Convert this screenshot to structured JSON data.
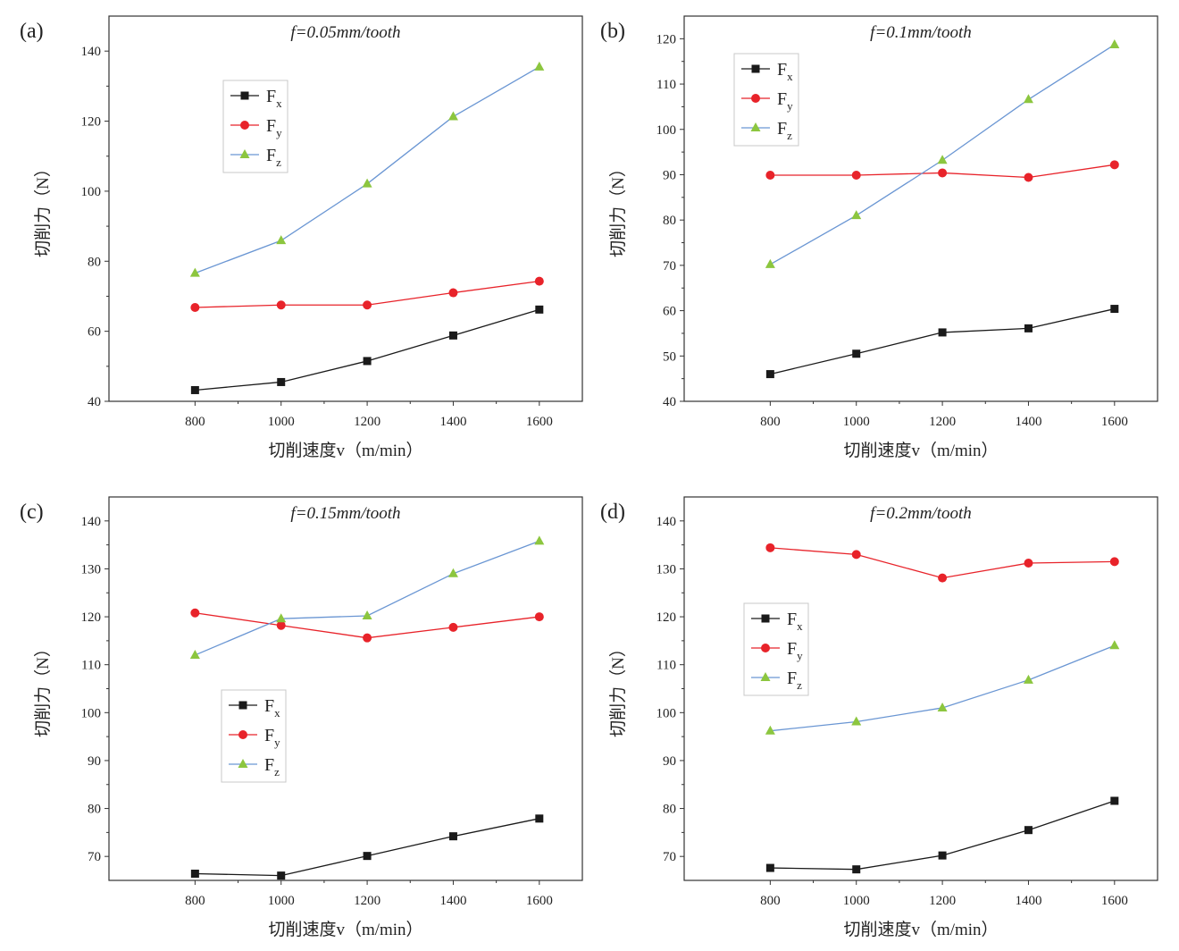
{
  "chart_data": [
    {
      "panel_label": "(a)",
      "title": "f=0.05mm/tooth",
      "type": "line",
      "xlabel": "切削速度v（m/min）",
      "ylabel": "切削力（N）",
      "x": [
        800,
        1000,
        1200,
        1400,
        1600
      ],
      "xlim": [
        600,
        1700
      ],
      "ylim": [
        40,
        150
      ],
      "yticks": [
        40,
        60,
        80,
        100,
        120,
        140
      ],
      "grid": false,
      "legend_position": "upper-left",
      "series": [
        {
          "name": "Fx",
          "base": "F",
          "sub": "x",
          "color": "#1a1a1a",
          "marker": "square",
          "values": [
            43.2,
            45.5,
            51.5,
            58.8,
            66.2
          ]
        },
        {
          "name": "Fy",
          "base": "F",
          "sub": "y",
          "color": "#e8232a",
          "marker": "circle",
          "values": [
            66.8,
            67.5,
            67.5,
            71.0,
            74.3
          ]
        },
        {
          "name": "Fz",
          "base": "F",
          "sub": "z",
          "color": "#6a96d3",
          "marker": "triangle",
          "marker_color": "#8cc63f",
          "values": [
            76.6,
            85.9,
            102.1,
            121.3,
            135.5
          ]
        }
      ]
    },
    {
      "panel_label": "(b)",
      "title": "f=0.1mm/tooth",
      "type": "line",
      "xlabel": "切削速度v（m/min）",
      "ylabel": "切削力（N）",
      "x": [
        800,
        1000,
        1200,
        1400,
        1600
      ],
      "xlim": [
        600,
        1700
      ],
      "ylim": [
        40,
        125
      ],
      "yticks": [
        40,
        50,
        60,
        70,
        80,
        90,
        100,
        110,
        120
      ],
      "grid": false,
      "legend_position": "upper-left",
      "series": [
        {
          "name": "Fx",
          "base": "F",
          "sub": "x",
          "color": "#1a1a1a",
          "marker": "square",
          "values": [
            46.0,
            50.5,
            55.2,
            56.1,
            60.4
          ]
        },
        {
          "name": "Fy",
          "base": "F",
          "sub": "y",
          "color": "#e8232a",
          "marker": "circle",
          "values": [
            89.9,
            89.9,
            90.4,
            89.4,
            92.2
          ]
        },
        {
          "name": "Fz",
          "base": "F",
          "sub": "z",
          "color": "#6a96d3",
          "marker": "triangle",
          "marker_color": "#8cc63f",
          "values": [
            70.2,
            81.0,
            93.2,
            106.6,
            118.7
          ]
        }
      ]
    },
    {
      "panel_label": "(c)",
      "title": "f=0.15mm/tooth",
      "type": "line",
      "xlabel": "切削速度v（m/min）",
      "ylabel": "切削力（N）",
      "x": [
        800,
        1000,
        1200,
        1400,
        1600
      ],
      "xlim": [
        600,
        1700
      ],
      "ylim": [
        65,
        145
      ],
      "yticks": [
        70,
        80,
        90,
        100,
        110,
        120,
        130,
        140
      ],
      "grid": false,
      "legend_position": "center-left",
      "series": [
        {
          "name": "Fx",
          "base": "F",
          "sub": "x",
          "color": "#1a1a1a",
          "marker": "square",
          "values": [
            66.4,
            66.0,
            70.1,
            74.2,
            77.9
          ]
        },
        {
          "name": "Fy",
          "base": "F",
          "sub": "y",
          "color": "#e8232a",
          "marker": "circle",
          "values": [
            120.8,
            118.2,
            115.6,
            117.8,
            120.0
          ]
        },
        {
          "name": "Fz",
          "base": "F",
          "sub": "z",
          "color": "#6a96d3",
          "marker": "triangle",
          "marker_color": "#8cc63f",
          "values": [
            112.0,
            119.6,
            120.2,
            129.0,
            135.8
          ]
        }
      ]
    },
    {
      "panel_label": "(d)",
      "title": "f=0.2mm/tooth",
      "type": "line",
      "xlabel": "切削速度v（m/min）",
      "ylabel": "切削力（N）",
      "x": [
        800,
        1000,
        1200,
        1400,
        1600
      ],
      "xlim": [
        600,
        1700
      ],
      "ylim": [
        65,
        145
      ],
      "yticks": [
        70,
        80,
        90,
        100,
        110,
        120,
        130,
        140
      ],
      "grid": false,
      "legend_position": "upper-left",
      "series": [
        {
          "name": "Fx",
          "base": "F",
          "sub": "x",
          "color": "#1a1a1a",
          "marker": "square",
          "values": [
            67.6,
            67.3,
            70.2,
            75.5,
            81.6
          ]
        },
        {
          "name": "Fy",
          "base": "F",
          "sub": "y",
          "color": "#e8232a",
          "marker": "circle",
          "values": [
            134.4,
            133.0,
            128.1,
            131.2,
            131.5
          ]
        },
        {
          "name": "Fz",
          "base": "F",
          "sub": "z",
          "color": "#6a96d3",
          "marker": "triangle",
          "marker_color": "#8cc63f",
          "values": [
            96.2,
            98.1,
            101.0,
            106.8,
            114.0
          ]
        }
      ]
    }
  ]
}
